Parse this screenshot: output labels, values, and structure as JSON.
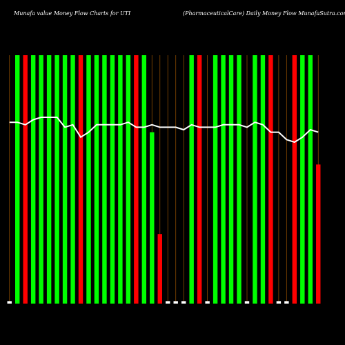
{
  "chart_data": {
    "type": "bar",
    "title": "Munafa value Money Flow Charts for UTI",
    "subtitle": "(PharmaceuticalCare) Daily Money Flow MunafaSutra.com",
    "categories": [
      null,
      null,
      null,
      null,
      null,
      null,
      null,
      null,
      null,
      null,
      null,
      null,
      null,
      null,
      null,
      null,
      null,
      null,
      null,
      null,
      null,
      null,
      null,
      null,
      null,
      null,
      null,
      null,
      null,
      null,
      null,
      null,
      null,
      null,
      null,
      null,
      null,
      null,
      null,
      null
    ],
    "values": [
      1,
      100,
      100,
      100,
      100,
      100,
      100,
      100,
      100,
      100,
      100,
      100,
      100,
      100,
      100,
      100,
      100,
      100,
      69,
      28,
      1,
      1,
      1,
      100,
      100,
      1,
      100,
      100,
      100,
      100,
      1,
      100,
      100,
      100,
      1,
      1,
      100,
      100,
      100,
      56
    ],
    "colors": [
      "#ffffff",
      "#00ff00",
      "#ff0000",
      "#00ff00",
      "#00ff00",
      "#00ff00",
      "#00ff00",
      "#00ff00",
      "#00ff00",
      "#ff0000",
      "#00ff00",
      "#00ff00",
      "#00ff00",
      "#00ff00",
      "#00ff00",
      "#00ff00",
      "#ff0000",
      "#00ff00",
      "#00ff00",
      "#ff0000",
      "#ffffff",
      "#ffffff",
      "#ffffff",
      "#00ff00",
      "#ff0000",
      "#ffffff",
      "#00ff00",
      "#00ff00",
      "#00ff00",
      "#00ff00",
      "#ffffff",
      "#00ff00",
      "#00ff00",
      "#ff0000",
      "#ffffff",
      "#ffffff",
      "#ff0000",
      "#00ff00",
      "#00ff00",
      "#ff0000"
    ],
    "line": {
      "color": "#ffffff",
      "values": [
        73,
        73,
        72,
        74,
        75,
        75,
        75,
        71,
        72,
        67,
        69,
        72,
        72,
        72,
        72,
        73,
        71,
        71,
        72,
        71,
        71,
        71,
        70,
        72,
        71,
        71,
        71,
        72,
        72,
        72,
        71,
        73,
        72,
        69,
        69,
        66,
        65,
        67,
        70,
        69
      ]
    },
    "ylim": [
      0,
      100
    ]
  }
}
